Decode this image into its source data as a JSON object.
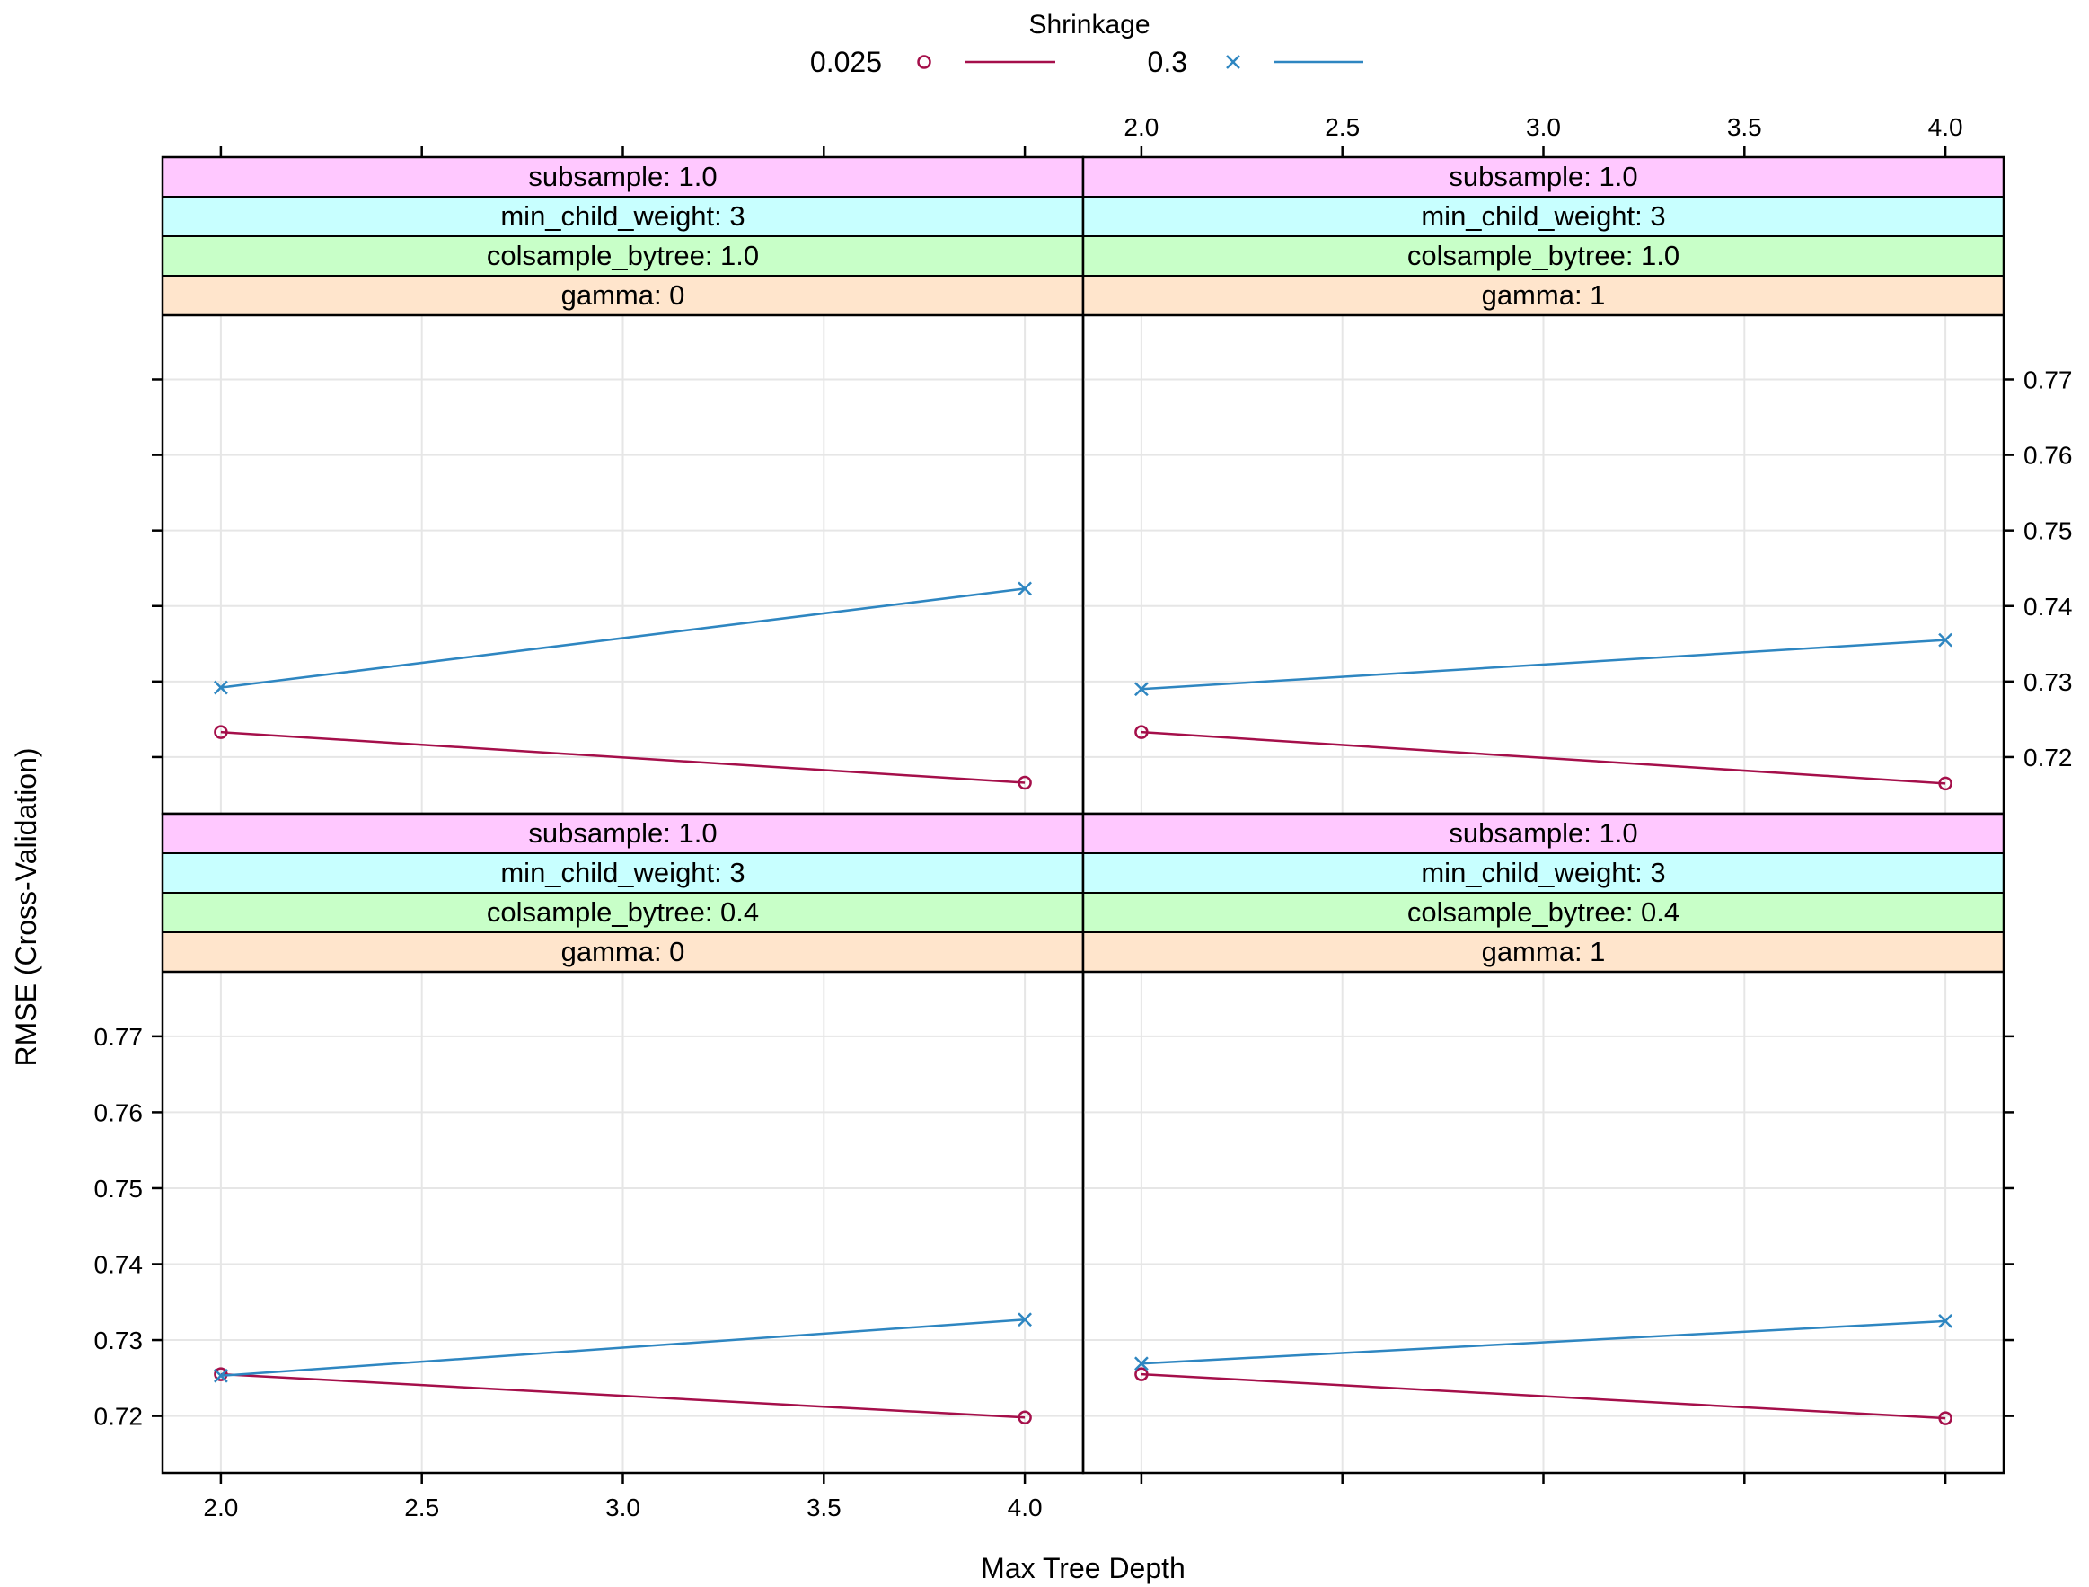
{
  "chart_data": {
    "type": "line",
    "layout": "trellis 2x2 panels",
    "xlabel": "Max Tree Depth",
    "ylabel": "RMSE (Cross-Validation)",
    "xlim": [
      1.855,
      4.145
    ],
    "ylim": [
      0.7125,
      0.7785
    ],
    "x_ticks": [
      2.0,
      2.5,
      3.0,
      3.5,
      4.0
    ],
    "x_tick_labels": [
      "2.0",
      "2.5",
      "3.0",
      "3.5",
      "4.0"
    ],
    "y_ticks": [
      0.72,
      0.73,
      0.74,
      0.75,
      0.76,
      0.77
    ],
    "y_tick_labels": [
      "0.72",
      "0.73",
      "0.74",
      "0.75",
      "0.76",
      "0.77"
    ],
    "legend": {
      "title": "Shrinkage",
      "position": "top-center",
      "entries": [
        {
          "label": "0.025",
          "marker": "circle",
          "color": "#A50F4A"
        },
        {
          "label": "0.3",
          "marker": "cross",
          "color": "#2E86C1"
        }
      ]
    },
    "panels": [
      {
        "position": "top-left",
        "strips": [
          "subsample: 1.0",
          "min_child_weight: 3",
          "colsample_bytree: 1.0",
          "gamma: 0"
        ],
        "x": [
          2.0,
          4.0
        ],
        "series": [
          {
            "name": "0.025",
            "values": [
              0.7233,
              0.7166
            ]
          },
          {
            "name": "0.3",
            "values": [
              0.7292,
              0.7423
            ]
          }
        ]
      },
      {
        "position": "top-right",
        "strips": [
          "subsample: 1.0",
          "min_child_weight: 3",
          "colsample_bytree: 1.0",
          "gamma: 1"
        ],
        "x": [
          2.0,
          4.0
        ],
        "series": [
          {
            "name": "0.025",
            "values": [
              0.7233,
              0.7165
            ]
          },
          {
            "name": "0.3",
            "values": [
              0.729,
              0.7355
            ]
          }
        ]
      },
      {
        "position": "bottom-left",
        "strips": [
          "subsample: 1.0",
          "min_child_weight: 3",
          "colsample_bytree: 0.4",
          "gamma: 0"
        ],
        "x": [
          2.0,
          4.0
        ],
        "series": [
          {
            "name": "0.025",
            "values": [
              0.7255,
              0.7198
            ]
          },
          {
            "name": "0.3",
            "values": [
              0.7253,
              0.7327
            ]
          }
        ]
      },
      {
        "position": "bottom-right",
        "strips": [
          "subsample: 1.0",
          "min_child_weight: 3",
          "colsample_bytree: 0.4",
          "gamma: 1"
        ],
        "x": [
          2.0,
          4.0
        ],
        "series": [
          {
            "name": "0.025",
            "values": [
              0.7255,
              0.7197
            ]
          },
          {
            "name": "0.3",
            "values": [
              0.7269,
              0.7325
            ]
          }
        ]
      }
    ],
    "strip_colors": [
      "#FFC8FF",
      "#C8FFFF",
      "#C8FFC8",
      "#FFE5CC"
    ]
  }
}
